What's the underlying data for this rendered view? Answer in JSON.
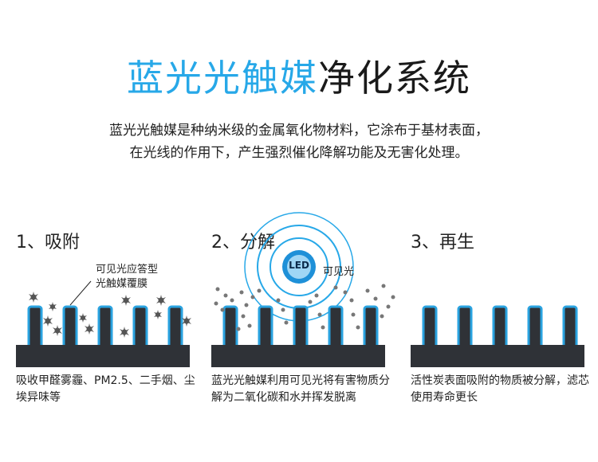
{
  "header": {
    "title_accent": "蓝光光触媒",
    "title_rest": "净化系统",
    "accent_color": "#27a8e8",
    "desc_line1": "蓝光光触媒是种纳米级的金属氧化物材料，它涂布于基材表面，",
    "desc_line2": "在光线的作用下，产生强烈催化降解功能及无害化处理。"
  },
  "steps": [
    {
      "title": "1、吸附",
      "label_line1": "可见光应答型",
      "label_line2": "光触媒覆膜",
      "caption": "吸收甲醛雾霾、PM2.5、二手烟、尘埃异味等"
    },
    {
      "title": "2、分解",
      "led_text": "LED",
      "light_label": "可见光",
      "caption": "蓝光光触媒利用可见光将有害物质分解为二氧化碳和水并挥发脱离"
    },
    {
      "title": "3、再生",
      "caption": "活性炭表面吸附的物质被分解，滤芯使用寿命更长"
    }
  ],
  "colors": {
    "pillar_fill": "#2f3237",
    "pillar_outline": "#2aa3e0",
    "base": "#2f3237",
    "particle": "#555555"
  }
}
